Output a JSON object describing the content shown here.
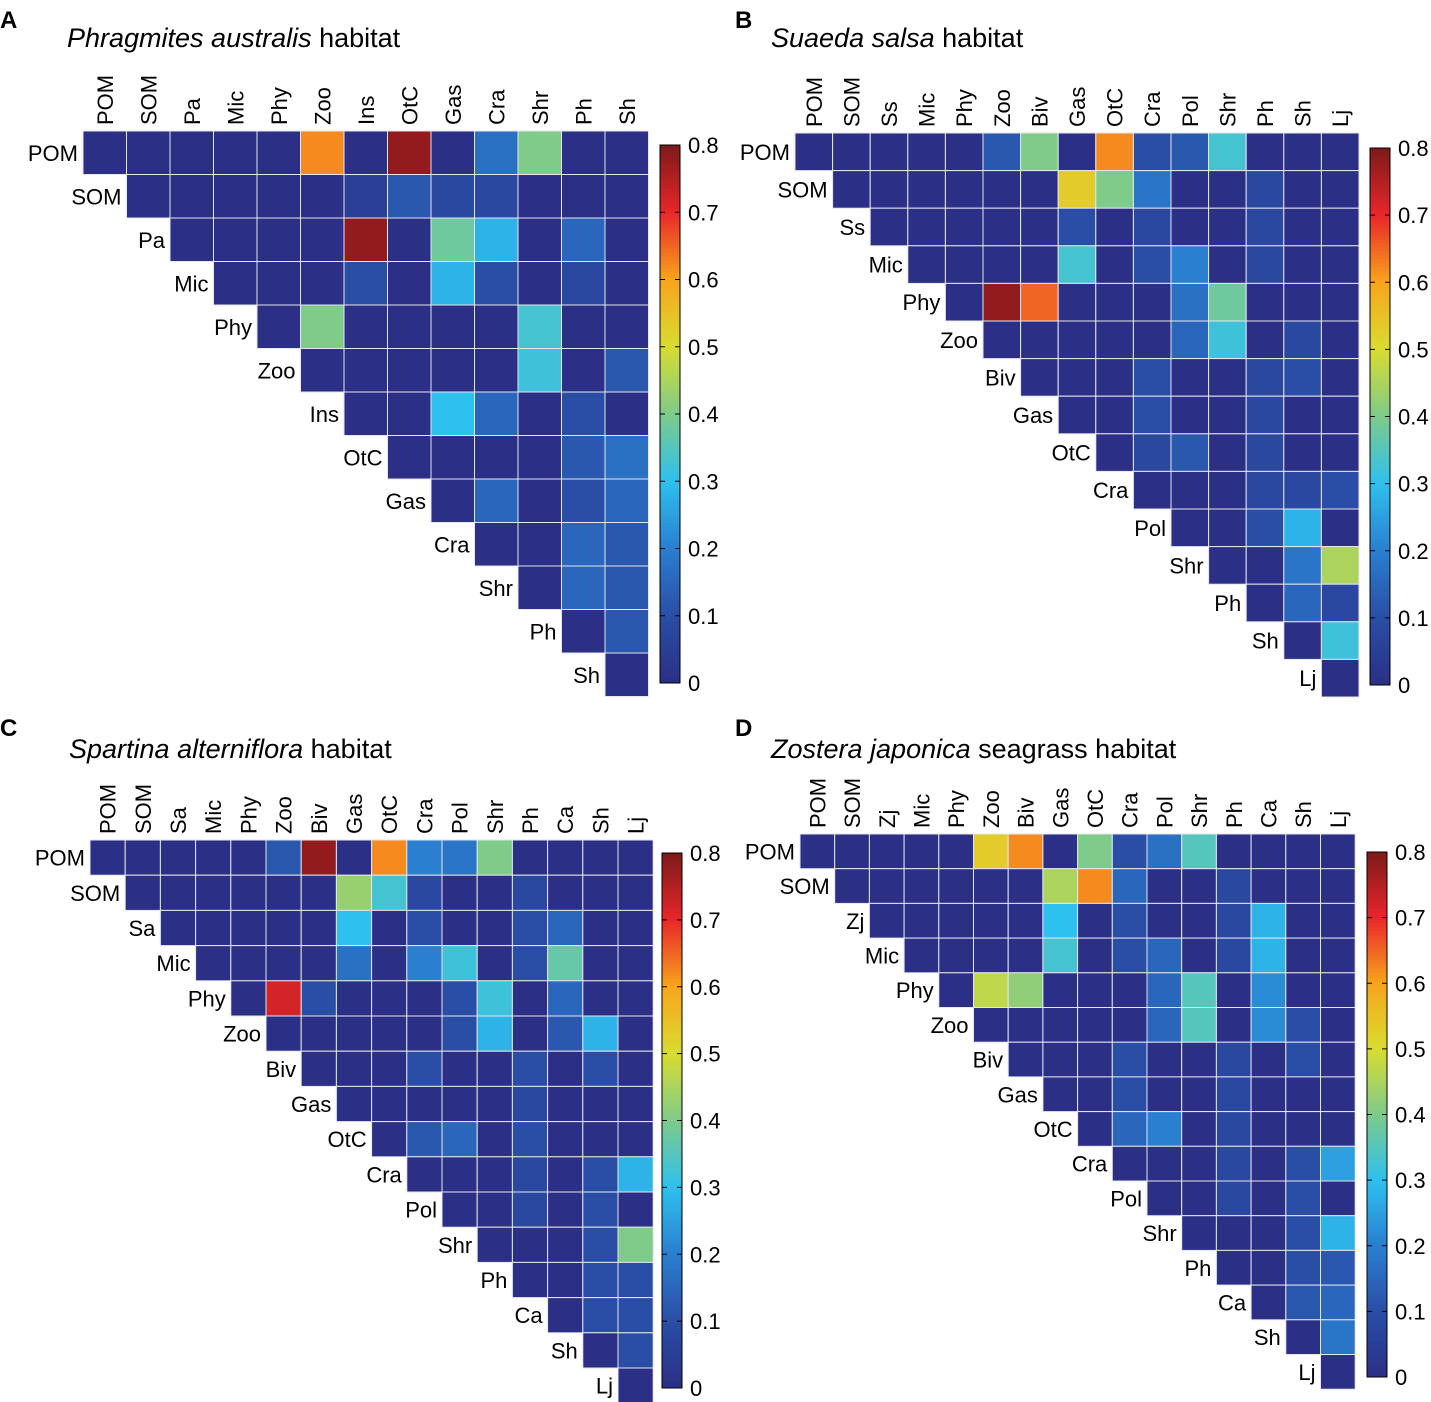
{
  "figure": {
    "description_note": ""
  },
  "chart_data": [
    {
      "type": "heatmap",
      "panel_label": "A",
      "title_italic": "Phragmites australis",
      "title_rest": " habitat",
      "labels": [
        "POM",
        "SOM",
        "Pa",
        "Mic",
        "Phy",
        "Zoo",
        "Ins",
        "OtC",
        "Gas",
        "Cra",
        "Shr",
        "Ph",
        "Sh"
      ],
      "matrix": [
        [
          0,
          0,
          0,
          0,
          0,
          0.62,
          0,
          0.78,
          0,
          0.17,
          0.4,
          0,
          0
        ],
        [
          null,
          0,
          0,
          0,
          0,
          0,
          0.05,
          0.12,
          0.08,
          0.08,
          0,
          0,
          0
        ],
        [
          null,
          null,
          0,
          0,
          0,
          0,
          0.78,
          0,
          0.38,
          0.28,
          0,
          0.15,
          0
        ],
        [
          null,
          null,
          null,
          0,
          0,
          0,
          0.1,
          0,
          0.28,
          0.1,
          0,
          0.08,
          0
        ],
        [
          null,
          null,
          null,
          null,
          0,
          0.4,
          0,
          0,
          0,
          0,
          0.33,
          0,
          0
        ],
        [
          null,
          null,
          null,
          null,
          null,
          0,
          0,
          0,
          0,
          0,
          0.32,
          0,
          0.12
        ],
        [
          null,
          null,
          null,
          null,
          null,
          null,
          0,
          0,
          0.3,
          0.15,
          0,
          0.1,
          0
        ],
        [
          null,
          null,
          null,
          null,
          null,
          null,
          null,
          0,
          0,
          0,
          0,
          0.12,
          0.17
        ],
        [
          null,
          null,
          null,
          null,
          null,
          null,
          null,
          null,
          0,
          0.15,
          0,
          0.1,
          0.15
        ],
        [
          null,
          null,
          null,
          null,
          null,
          null,
          null,
          null,
          null,
          0,
          0,
          0.15,
          0.12
        ],
        [
          null,
          null,
          null,
          null,
          null,
          null,
          null,
          null,
          null,
          null,
          0,
          0.15,
          0.12
        ],
        [
          null,
          null,
          null,
          null,
          null,
          null,
          null,
          null,
          null,
          null,
          null,
          0,
          0.12
        ],
        [
          null,
          null,
          null,
          null,
          null,
          null,
          null,
          null,
          null,
          null,
          null,
          null,
          0
        ]
      ],
      "colorbar": {
        "range": [
          0,
          0.8
        ],
        "ticks": [
          "0",
          "0.1",
          "0.2",
          "0.3",
          "0.4",
          "0.5",
          "0.6",
          "0.7",
          "0.8"
        ]
      }
    },
    {
      "type": "heatmap",
      "panel_label": "B",
      "title_italic": "Suaeda salsa",
      "title_rest": " habitat",
      "labels": [
        "POM",
        "SOM",
        "Ss",
        "Mic",
        "Phy",
        "Zoo",
        "Biv",
        "Gas",
        "OtC",
        "Cra",
        "Pol",
        "Shr",
        "Ph",
        "Sh",
        "Lj"
      ],
      "matrix": [
        [
          0,
          0,
          0,
          0,
          0,
          0.12,
          0.4,
          0,
          0.62,
          0.1,
          0.12,
          0.33,
          0,
          0,
          0
        ],
        [
          null,
          0,
          0,
          0,
          0,
          0,
          0,
          0.53,
          0.4,
          0.18,
          0,
          0,
          0.08,
          0,
          0
        ],
        [
          null,
          null,
          0,
          0,
          0,
          0,
          0,
          0.1,
          0,
          0.08,
          0,
          0,
          0.08,
          0,
          0
        ],
        [
          null,
          null,
          null,
          0,
          0,
          0,
          0,
          0.33,
          0,
          0.1,
          0.2,
          0,
          0.08,
          0,
          0
        ],
        [
          null,
          null,
          null,
          null,
          0,
          0.78,
          0.65,
          0,
          0,
          0,
          0.17,
          0.38,
          0,
          0,
          0
        ],
        [
          null,
          null,
          null,
          null,
          null,
          0,
          0,
          0,
          0,
          0,
          0.15,
          0.32,
          0,
          0.08,
          0
        ],
        [
          null,
          null,
          null,
          null,
          null,
          null,
          0,
          0,
          0,
          0.1,
          0,
          0,
          0.08,
          0.1,
          0
        ],
        [
          null,
          null,
          null,
          null,
          null,
          null,
          null,
          0,
          0,
          0.1,
          0,
          0,
          0.08,
          0,
          0
        ],
        [
          null,
          null,
          null,
          null,
          null,
          null,
          null,
          null,
          0,
          0.08,
          0.12,
          0,
          0.08,
          0,
          0
        ],
        [
          null,
          null,
          null,
          null,
          null,
          null,
          null,
          null,
          null,
          0,
          0,
          0,
          0.08,
          0.08,
          0.1
        ],
        [
          null,
          null,
          null,
          null,
          null,
          null,
          null,
          null,
          null,
          null,
          0,
          0,
          0.1,
          0.28,
          0
        ],
        [
          null,
          null,
          null,
          null,
          null,
          null,
          null,
          null,
          null,
          null,
          null,
          0,
          0,
          0.18,
          0.45
        ],
        [
          null,
          null,
          null,
          null,
          null,
          null,
          null,
          null,
          null,
          null,
          null,
          null,
          0,
          0.15,
          0.08
        ],
        [
          null,
          null,
          null,
          null,
          null,
          null,
          null,
          null,
          null,
          null,
          null,
          null,
          null,
          0,
          0.32
        ],
        [
          null,
          null,
          null,
          null,
          null,
          null,
          null,
          null,
          null,
          null,
          null,
          null,
          null,
          null,
          0
        ]
      ],
      "colorbar": {
        "range": [
          0,
          0.8
        ],
        "ticks": [
          "0",
          "0.1",
          "0.2",
          "0.3",
          "0.4",
          "0.5",
          "0.6",
          "0.7",
          "0.8"
        ]
      }
    },
    {
      "type": "heatmap",
      "panel_label": "C",
      "title_italic": "Spartina alterniflora",
      "title_rest": " habitat",
      "labels": [
        "POM",
        "SOM",
        "Sa",
        "Mic",
        "Phy",
        "Zoo",
        "Biv",
        "Gas",
        "OtC",
        "Cra",
        "Pol",
        "Shr",
        "Ph",
        "Ca",
        "Sh",
        "Lj"
      ],
      "matrix": [
        [
          0,
          0,
          0,
          0,
          0,
          0.12,
          0.78,
          0,
          0.62,
          0.2,
          0.18,
          0.4,
          0,
          0,
          0,
          0
        ],
        [
          null,
          0,
          0,
          0,
          0,
          0,
          0,
          0.43,
          0.33,
          0.08,
          0,
          0,
          0.08,
          0,
          0,
          0
        ],
        [
          null,
          null,
          0,
          0,
          0,
          0,
          0,
          0.3,
          0,
          0.1,
          0,
          0,
          0.1,
          0.15,
          0,
          0
        ],
        [
          null,
          null,
          null,
          0,
          0,
          0,
          0,
          0.17,
          0,
          0.2,
          0.32,
          0,
          0.1,
          0.37,
          0,
          0
        ],
        [
          null,
          null,
          null,
          null,
          0,
          0.72,
          0.1,
          0,
          0,
          0,
          0.1,
          0.32,
          0,
          0.15,
          0,
          0
        ],
        [
          null,
          null,
          null,
          null,
          null,
          0,
          0,
          0,
          0,
          0,
          0.1,
          0.28,
          0,
          0.12,
          0.28,
          0
        ],
        [
          null,
          null,
          null,
          null,
          null,
          null,
          0,
          0,
          0,
          0.1,
          0,
          0,
          0.1,
          0,
          0.1,
          0
        ],
        [
          null,
          null,
          null,
          null,
          null,
          null,
          null,
          0,
          0,
          0,
          0,
          0,
          0.08,
          0,
          0,
          0
        ],
        [
          null,
          null,
          null,
          null,
          null,
          null,
          null,
          null,
          0,
          0.12,
          0.15,
          0,
          0.1,
          0,
          0,
          0
        ],
        [
          null,
          null,
          null,
          null,
          null,
          null,
          null,
          null,
          null,
          0,
          0,
          0,
          0.08,
          0,
          0.1,
          0.28
        ],
        [
          null,
          null,
          null,
          null,
          null,
          null,
          null,
          null,
          null,
          null,
          0,
          0,
          0.08,
          0,
          0.1,
          0
        ],
        [
          null,
          null,
          null,
          null,
          null,
          null,
          null,
          null,
          null,
          null,
          null,
          0,
          0,
          0,
          0.1,
          0.4
        ],
        [
          null,
          null,
          null,
          null,
          null,
          null,
          null,
          null,
          null,
          null,
          null,
          null,
          0,
          0,
          0.1,
          0.1
        ],
        [
          null,
          null,
          null,
          null,
          null,
          null,
          null,
          null,
          null,
          null,
          null,
          null,
          null,
          0,
          0.1,
          0.1
        ],
        [
          null,
          null,
          null,
          null,
          null,
          null,
          null,
          null,
          null,
          null,
          null,
          null,
          null,
          null,
          0,
          0.1
        ],
        [
          null,
          null,
          null,
          null,
          null,
          null,
          null,
          null,
          null,
          null,
          null,
          null,
          null,
          null,
          null,
          0
        ]
      ],
      "colorbar": {
        "range": [
          0,
          0.8
        ],
        "ticks": [
          "0",
          "0.1",
          "0.2",
          "0.3",
          "0.4",
          "0.5",
          "0.6",
          "0.7",
          "0.8"
        ]
      }
    },
    {
      "type": "heatmap",
      "panel_label": "D",
      "title_italic": "Zostera japonica",
      "title_rest": " seagrass habitat",
      "labels": [
        "POM",
        "SOM",
        "Zj",
        "Mic",
        "Phy",
        "Zoo",
        "Biv",
        "Gas",
        "OtC",
        "Cra",
        "Pol",
        "Shr",
        "Ph",
        "Ca",
        "Sh",
        "Lj"
      ],
      "matrix": [
        [
          0,
          0,
          0,
          0,
          0,
          0.53,
          0.62,
          0,
          0.4,
          0.1,
          0.17,
          0.35,
          0,
          0,
          0,
          0
        ],
        [
          null,
          0,
          0,
          0,
          0,
          0,
          0,
          0.45,
          0.62,
          0.15,
          0,
          0,
          0.08,
          0,
          0,
          0
        ],
        [
          null,
          null,
          0,
          0,
          0,
          0,
          0,
          0.3,
          0,
          0.1,
          0,
          0,
          0.08,
          0.28,
          0,
          0
        ],
        [
          null,
          null,
          null,
          0,
          0,
          0,
          0,
          0.33,
          0,
          0.1,
          0.15,
          0,
          0.08,
          0.28,
          0,
          0
        ],
        [
          null,
          null,
          null,
          null,
          0,
          0.47,
          0.42,
          0,
          0,
          0,
          0.15,
          0.35,
          0,
          0.22,
          0,
          0
        ],
        [
          null,
          null,
          null,
          null,
          null,
          0,
          0,
          0,
          0,
          0,
          0.15,
          0.35,
          0,
          0.22,
          0.1,
          0
        ],
        [
          null,
          null,
          null,
          null,
          null,
          null,
          0,
          0,
          0,
          0.1,
          0,
          0,
          0.08,
          0,
          0.1,
          0
        ],
        [
          null,
          null,
          null,
          null,
          null,
          null,
          null,
          0,
          0,
          0.1,
          0,
          0,
          0.08,
          0,
          0,
          0
        ],
        [
          null,
          null,
          null,
          null,
          null,
          null,
          null,
          null,
          0,
          0.15,
          0.2,
          0,
          0.08,
          0,
          0,
          0
        ],
        [
          null,
          null,
          null,
          null,
          null,
          null,
          null,
          null,
          null,
          0,
          0,
          0,
          0.08,
          0,
          0.1,
          0.25
        ],
        [
          null,
          null,
          null,
          null,
          null,
          null,
          null,
          null,
          null,
          null,
          0,
          0,
          0.08,
          0,
          0.1,
          0
        ],
        [
          null,
          null,
          null,
          null,
          null,
          null,
          null,
          null,
          null,
          null,
          null,
          0,
          0,
          0,
          0.1,
          0.28
        ],
        [
          null,
          null,
          null,
          null,
          null,
          null,
          null,
          null,
          null,
          null,
          null,
          null,
          0,
          0,
          0.1,
          0.12
        ],
        [
          null,
          null,
          null,
          null,
          null,
          null,
          null,
          null,
          null,
          null,
          null,
          null,
          null,
          0,
          0.12,
          0.15
        ],
        [
          null,
          null,
          null,
          null,
          null,
          null,
          null,
          null,
          null,
          null,
          null,
          null,
          null,
          null,
          0,
          0.18
        ],
        [
          null,
          null,
          null,
          null,
          null,
          null,
          null,
          null,
          null,
          null,
          null,
          null,
          null,
          null,
          null,
          0
        ]
      ],
      "colorbar": {
        "range": [
          0,
          0.8
        ],
        "ticks": [
          "0",
          "0.1",
          "0.2",
          "0.3",
          "0.4",
          "0.5",
          "0.6",
          "0.7",
          "0.8"
        ]
      }
    }
  ]
}
